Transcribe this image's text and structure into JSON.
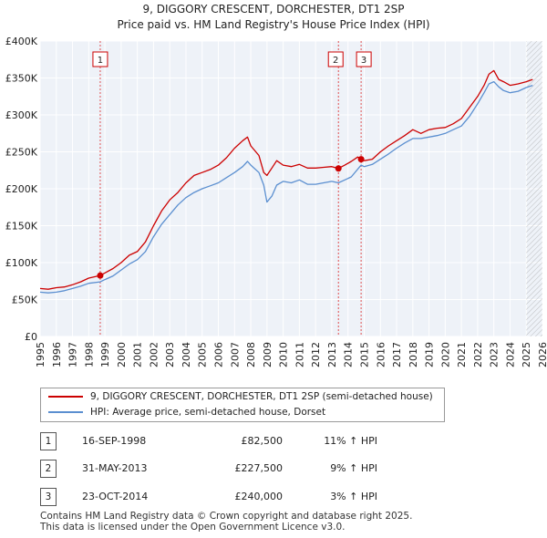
{
  "chart_data": {
    "type": "line",
    "title": "9, DIGGORY CRESCENT, DORCHESTER, DT1 2SP",
    "subtitle": "Price paid vs. HM Land Registry's House Price Index (HPI)",
    "xlim": [
      1995,
      2026
    ],
    "ylim": [
      0,
      400000
    ],
    "x_ticks": [
      "1995",
      "1996",
      "1997",
      "1998",
      "1999",
      "2000",
      "2001",
      "2002",
      "2003",
      "2004",
      "2005",
      "2006",
      "2007",
      "2008",
      "2009",
      "2010",
      "2011",
      "2012",
      "2013",
      "2014",
      "2015",
      "2016",
      "2017",
      "2018",
      "2019",
      "2020",
      "2021",
      "2022",
      "2023",
      "2024",
      "2025",
      "2026"
    ],
    "y_ticks": [
      {
        "value": 0,
        "label": "£0"
      },
      {
        "value": 50000,
        "label": "£50K"
      },
      {
        "value": 100000,
        "label": "£100K"
      },
      {
        "value": 150000,
        "label": "£150K"
      },
      {
        "value": 200000,
        "label": "£200K"
      },
      {
        "value": 250000,
        "label": "£250K"
      },
      {
        "value": 300000,
        "label": "£300K"
      },
      {
        "value": 350000,
        "label": "£350K"
      },
      {
        "value": 400000,
        "label": "£400K"
      }
    ],
    "forecast_start": 2025.0,
    "series": [
      {
        "name": "9, DIGGORY CRESCENT, DORCHESTER, DT1 2SP (semi-detached house)",
        "color": "#cc0000",
        "x": [
          1995.0,
          1995.5,
          1996.0,
          1996.5,
          1997.0,
          1997.5,
          1998.0,
          1998.4,
          1998.71,
          1999.0,
          1999.5,
          2000.0,
          2000.5,
          2001.0,
          2001.5,
          2002.0,
          2002.5,
          2003.0,
          2003.5,
          2004.0,
          2004.5,
          2005.0,
          2005.5,
          2006.0,
          2006.5,
          2007.0,
          2007.5,
          2007.8,
          2008.0,
          2008.5,
          2008.8,
          2009.0,
          2009.3,
          2009.6,
          2010.0,
          2010.5,
          2011.0,
          2011.5,
          2012.0,
          2012.5,
          2013.0,
          2013.41,
          2013.8,
          2014.2,
          2014.6,
          2014.81,
          2015.0,
          2015.5,
          2016.0,
          2016.5,
          2017.0,
          2017.5,
          2018.0,
          2018.5,
          2019.0,
          2019.5,
          2020.0,
          2020.5,
          2021.0,
          2021.5,
          2022.0,
          2022.4,
          2022.7,
          2023.0,
          2023.3,
          2023.6,
          2024.0,
          2024.5,
          2025.0,
          2025.4
        ],
        "y": [
          65000,
          64000,
          66000,
          67000,
          70000,
          74000,
          79000,
          81000,
          82500,
          86000,
          92000,
          100000,
          110000,
          115000,
          128000,
          150000,
          170000,
          185000,
          195000,
          208000,
          218000,
          222000,
          226000,
          232000,
          242000,
          255000,
          265000,
          270000,
          258000,
          245000,
          222000,
          218000,
          228000,
          238000,
          232000,
          230000,
          233000,
          228000,
          228000,
          229000,
          230000,
          227500,
          232000,
          237000,
          243000,
          240000,
          238000,
          240000,
          250000,
          258000,
          265000,
          272000,
          280000,
          275000,
          280000,
          282000,
          283000,
          288000,
          295000,
          310000,
          325000,
          340000,
          355000,
          360000,
          348000,
          345000,
          340000,
          342000,
          345000,
          348000
        ]
      },
      {
        "name": "HPI: Average price, semi-detached house, Dorset",
        "color": "#5b8fd0",
        "x": [
          1995.0,
          1995.5,
          1996.0,
          1996.5,
          1997.0,
          1997.5,
          1998.0,
          1998.71,
          1999.0,
          1999.5,
          2000.0,
          2000.5,
          2001.0,
          2001.5,
          2002.0,
          2002.5,
          2003.0,
          2003.5,
          2004.0,
          2004.5,
          2005.0,
          2005.5,
          2006.0,
          2006.5,
          2007.0,
          2007.5,
          2007.8,
          2008.0,
          2008.5,
          2008.8,
          2009.0,
          2009.3,
          2009.6,
          2010.0,
          2010.5,
          2011.0,
          2011.5,
          2012.0,
          2012.5,
          2013.0,
          2013.41,
          2013.8,
          2014.2,
          2014.81,
          2015.0,
          2015.5,
          2016.0,
          2016.5,
          2017.0,
          2017.5,
          2018.0,
          2018.5,
          2019.0,
          2019.5,
          2020.0,
          2020.5,
          2021.0,
          2021.5,
          2022.0,
          2022.4,
          2022.7,
          2023.0,
          2023.3,
          2023.6,
          2024.0,
          2024.5,
          2025.0,
          2025.4
        ],
        "y": [
          60000,
          59000,
          60000,
          62000,
          65000,
          68000,
          72000,
          74000,
          77000,
          82000,
          90000,
          98000,
          104000,
          115000,
          135000,
          152000,
          165000,
          178000,
          188000,
          195000,
          200000,
          204000,
          208000,
          215000,
          222000,
          230000,
          237000,
          232000,
          222000,
          205000,
          182000,
          190000,
          205000,
          210000,
          208000,
          212000,
          206000,
          206000,
          208000,
          210000,
          208000,
          212000,
          216000,
          232000,
          230000,
          233000,
          240000,
          247000,
          255000,
          262000,
          268000,
          268000,
          270000,
          272000,
          275000,
          280000,
          285000,
          298000,
          315000,
          330000,
          342000,
          345000,
          338000,
          333000,
          330000,
          332000,
          337000,
          340000
        ]
      }
    ],
    "sales": [
      {
        "id": "1",
        "x": 1998.71,
        "y": 82500
      },
      {
        "id": "2",
        "x": 2013.41,
        "y": 227500
      },
      {
        "id": "3",
        "x": 2014.81,
        "y": 240000
      }
    ]
  },
  "legend": {
    "property_label": "9, DIGGORY CRESCENT, DORCHESTER, DT1 2SP (semi-detached house)",
    "hpi_label": "HPI: Average price, semi-detached house, Dorset"
  },
  "transactions": [
    {
      "num": "1",
      "date": "16-SEP-1998",
      "price": "£82,500",
      "hpi": "11% ↑ HPI"
    },
    {
      "num": "2",
      "date": "31-MAY-2013",
      "price": "£227,500",
      "hpi": "9% ↑ HPI"
    },
    {
      "num": "3",
      "date": "23-OCT-2014",
      "price": "£240,000",
      "hpi": "3% ↑ HPI"
    }
  ],
  "footer": {
    "line1": "Contains HM Land Registry data © Crown copyright and database right 2025.",
    "line2": "This data is licensed under the Open Government Licence v3.0."
  },
  "colors": {
    "property": "#cc0000",
    "hpi": "#5b8fd0",
    "background": "#eef2f8",
    "grid": "#ffffff"
  }
}
